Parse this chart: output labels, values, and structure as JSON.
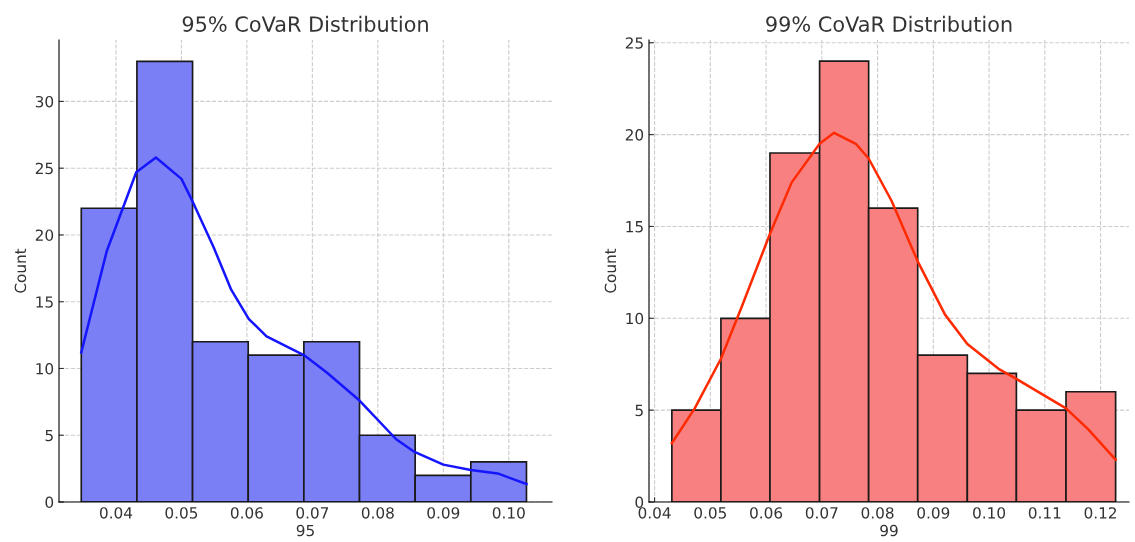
{
  "chart_data": [
    {
      "type": "histogram",
      "title": "95% CoVaR Distribution",
      "xlabel": "95",
      "ylabel": "Count",
      "bins": [
        0.0347,
        0.0432,
        0.0517,
        0.0602,
        0.0687,
        0.0772,
        0.0857,
        0.0942,
        0.1027
      ],
      "values": [
        22,
        33,
        12,
        11,
        12,
        5,
        2,
        3
      ],
      "color": "#7b7ff6",
      "series": [
        {
          "type": "line",
          "color": "#1515ff",
          "x": [
            0.0347,
            0.0386,
            0.0431,
            0.0461,
            0.05,
            0.0517,
            0.0549,
            0.0576,
            0.0603,
            0.063,
            0.0687,
            0.0722,
            0.0772,
            0.0828,
            0.0856,
            0.09,
            0.0942,
            0.0983,
            0.1027
          ],
          "values": [
            11.2,
            18.8,
            24.7,
            25.8,
            24.2,
            22.5,
            19.1,
            15.9,
            13.7,
            12.4,
            11.0,
            9.7,
            7.6,
            4.7,
            3.75,
            2.8,
            2.4,
            2.14,
            1.34
          ]
        }
      ],
      "xlim": [
        0.0313,
        0.1066
      ],
      "ylim": [
        0,
        34.6
      ],
      "xticks": [
        {
          "value": 0.04,
          "label": "0.04"
        },
        {
          "value": 0.05,
          "label": "0.05"
        },
        {
          "value": 0.06,
          "label": "0.06"
        },
        {
          "value": 0.07,
          "label": "0.07"
        },
        {
          "value": 0.08,
          "label": "0.08"
        },
        {
          "value": 0.09,
          "label": "0.09"
        },
        {
          "value": 0.1,
          "label": "0.10"
        }
      ],
      "yticks": [
        0,
        5,
        10,
        15,
        20,
        25,
        30
      ],
      "grid": true
    },
    {
      "type": "histogram",
      "title": "99% CoVaR Distribution",
      "xlabel": "99",
      "ylabel": "Count",
      "bins": [
        0.0431,
        0.0519,
        0.0607,
        0.0696,
        0.0784,
        0.0872,
        0.0961,
        0.1049,
        0.1138,
        0.1227
      ],
      "values": [
        5,
        10,
        19,
        24,
        16,
        8,
        7,
        5,
        6
      ],
      "color": "#f88080",
      "series": [
        {
          "type": "line",
          "color": "#ff2a00",
          "x": [
            0.0431,
            0.0472,
            0.0519,
            0.0556,
            0.0607,
            0.0646,
            0.0696,
            0.0722,
            0.0761,
            0.0784,
            0.0825,
            0.0872,
            0.0921,
            0.0961,
            0.1017,
            0.1049,
            0.1138,
            0.1178,
            0.1227
          ],
          "values": [
            3.2,
            5.1,
            7.8,
            10.6,
            14.6,
            17.4,
            19.5,
            20.1,
            19.5,
            18.7,
            16.4,
            13.1,
            10.2,
            8.6,
            7.25,
            6.7,
            5.1,
            3.95,
            2.3
          ]
        }
      ],
      "xlim": [
        0.039,
        0.1251
      ],
      "ylim": [
        0,
        25.15
      ],
      "xticks": [
        {
          "value": 0.04,
          "label": "0.04"
        },
        {
          "value": 0.05,
          "label": "0.05"
        },
        {
          "value": 0.06,
          "label": "0.06"
        },
        {
          "value": 0.07,
          "label": "0.07"
        },
        {
          "value": 0.08,
          "label": "0.08"
        },
        {
          "value": 0.09,
          "label": "0.09"
        },
        {
          "value": 0.1,
          "label": "0.10"
        },
        {
          "value": 0.11,
          "label": "0.11"
        },
        {
          "value": 0.12,
          "label": "0.12"
        }
      ],
      "yticks": [
        0,
        5,
        10,
        15,
        20,
        25
      ],
      "grid": true
    }
  ]
}
